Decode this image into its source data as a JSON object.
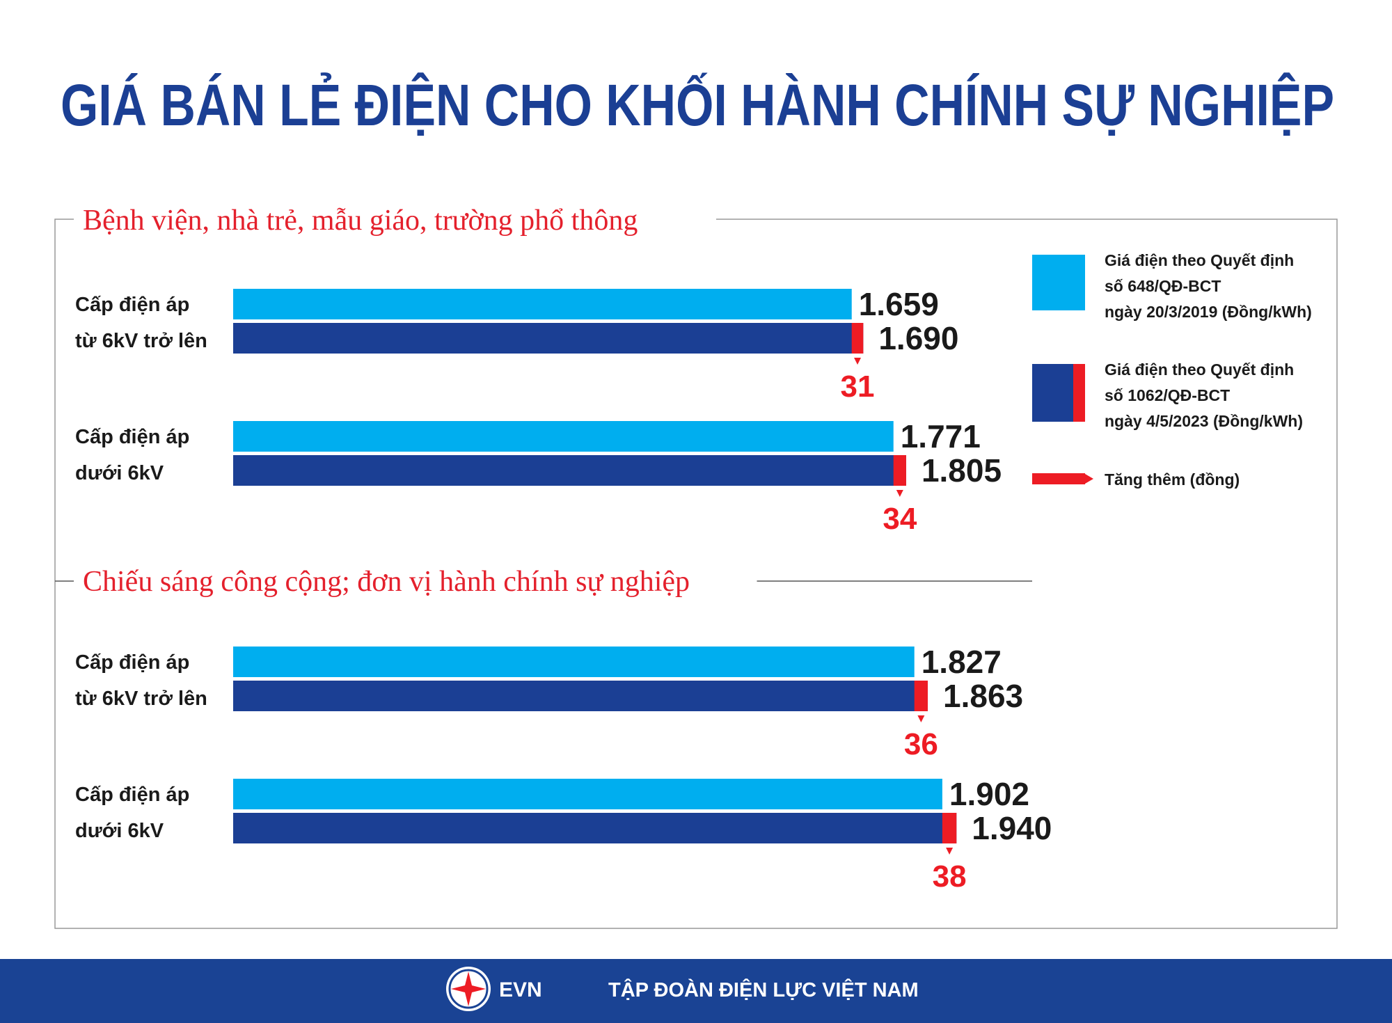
{
  "title": "GIÁ BÁN LẺ ĐIỆN CHO KHỐI HÀNH CHÍNH SỰ NGHIỆP",
  "footer": {
    "logo": "EVN",
    "text": "TẬP ĐOÀN ĐIỆN LỰC VIỆT NAM"
  },
  "chart_data": [
    {
      "type": "bar",
      "title": "Bệnh viện, nhà trẻ, mẫu giáo, trường phổ thông",
      "categories": [
        "Cấp điện áp\ntừ 6kV trở lên",
        "Cấp điện áp\ndưới 6kV"
      ],
      "series": [
        {
          "name": "Giá điện theo Quyết định\nsố 648/QĐ-BCT\nngày 20/3/2019 (Đồng/kWh)",
          "color": "#00aeef",
          "values": [
            1659,
            1771
          ],
          "value_labels": [
            "1.659",
            "1.771"
          ]
        },
        {
          "name": "Giá điện theo Quyết định\nsố 1062/QĐ-BCT\nngày 4/5/2023 (Đồng/kWh)",
          "color": "#1b3f94",
          "values": [
            1690,
            1805
          ],
          "value_labels": [
            "1.690",
            "1.805"
          ]
        },
        {
          "name": "Tăng thêm (đồng)",
          "color": "#ed1c24",
          "values": [
            31,
            34
          ]
        }
      ]
    },
    {
      "type": "bar",
      "title": "Chiếu sáng công cộng; đơn vị hành chính sự nghiệp",
      "categories": [
        "Cấp điện áp\ntừ 6kV trở lên",
        "Cấp điện áp\ndưới 6kV"
      ],
      "series": [
        {
          "color": "#00aeef",
          "values": [
            1827,
            1902
          ],
          "value_labels": [
            "1.827",
            "1.902"
          ]
        },
        {
          "color": "#1b3f94",
          "values": [
            1863,
            1940
          ],
          "value_labels": [
            "1.863",
            "1.940"
          ]
        },
        {
          "color": "#ed1c24",
          "values": [
            36,
            38
          ]
        }
      ]
    }
  ]
}
